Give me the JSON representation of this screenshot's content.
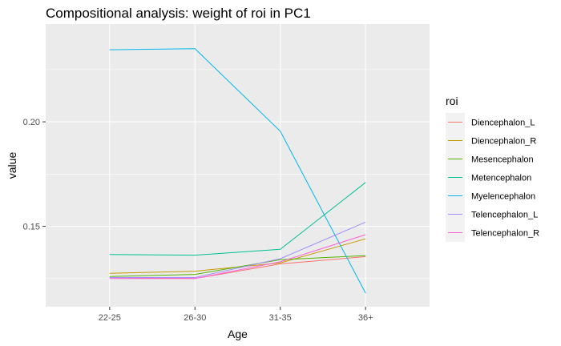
{
  "chart_data": {
    "type": "line",
    "title": "Compositional analysis: weight of roi in PC1",
    "xlabel": "Age",
    "ylabel": "value",
    "categories": [
      "22-25",
      "26-30",
      "31-35",
      "36+"
    ],
    "y_ticks": [
      0.15,
      0.2
    ],
    "y_tick_labels": [
      "0.15",
      "0.20"
    ],
    "ylim": [
      0.1115,
      0.2468
    ],
    "grid": true,
    "legend": {
      "title": "roi",
      "position": "right"
    },
    "series": [
      {
        "name": "Diencephalon_L",
        "color": "#F8766D",
        "values": [
          0.1255,
          0.125,
          0.132,
          0.1355
        ]
      },
      {
        "name": "Diencephalon_R",
        "color": "#C49A00",
        "values": [
          0.1275,
          0.1285,
          0.1325,
          0.144
        ]
      },
      {
        "name": "Mesencephalon",
        "color": "#53B400",
        "values": [
          0.126,
          0.127,
          0.134,
          0.136
        ]
      },
      {
        "name": "Metencephalon",
        "color": "#00C094",
        "values": [
          0.1365,
          0.1362,
          0.139,
          0.171
        ]
      },
      {
        "name": "Myelencephalon",
        "color": "#00B6EB",
        "values": [
          0.2345,
          0.235,
          0.1955,
          0.118
        ]
      },
      {
        "name": "Telencephalon_L",
        "color": "#A58AFF",
        "values": [
          0.1255,
          0.1255,
          0.1345,
          0.152
        ]
      },
      {
        "name": "Telencephalon_R",
        "color": "#FB61D7",
        "values": [
          0.125,
          0.125,
          0.133,
          0.146
        ]
      }
    ]
  }
}
